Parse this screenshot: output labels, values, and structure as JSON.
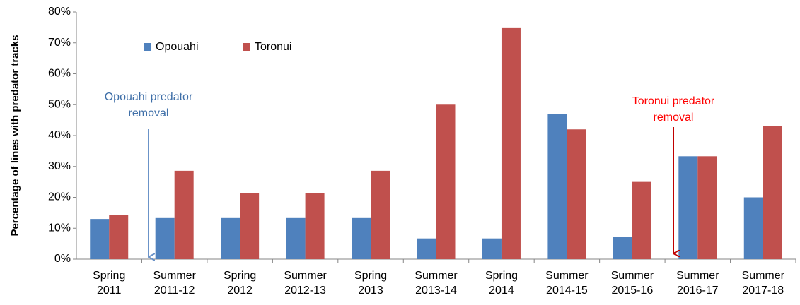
{
  "chart_data": {
    "type": "bar",
    "y_label": "Percentage of lines with predator tracks",
    "categories": [
      [
        "Spring",
        "2011"
      ],
      [
        "Summer",
        "2011-12"
      ],
      [
        "Spring",
        "2012"
      ],
      [
        "Summer",
        "2012-13"
      ],
      [
        "Spring",
        "2013"
      ],
      [
        "Summer",
        "2013-14"
      ],
      [
        "Spring",
        "2014"
      ],
      [
        "Summer",
        "2014-15"
      ],
      [
        "Summer",
        "2015-16"
      ],
      [
        "Summer",
        "2016-17"
      ],
      [
        "Summer",
        "2017-18"
      ]
    ],
    "series": [
      {
        "name": "Opouahi",
        "color": "#4f81bd",
        "values": [
          13,
          13.3,
          13.3,
          13.3,
          13.3,
          6.7,
          6.7,
          47,
          7.1,
          33.3,
          20
        ]
      },
      {
        "name": "Toronui",
        "color": "#c0504d",
        "values": [
          14.3,
          28.6,
          21.4,
          21.4,
          28.6,
          50,
          75,
          42,
          25,
          33.3,
          43
        ]
      }
    ],
    "ylim": [
      0,
      80
    ],
    "yticks": [
      {
        "value": 0,
        "label": "0%"
      },
      {
        "value": 10,
        "label": "10%"
      },
      {
        "value": 20,
        "label": "20%"
      },
      {
        "value": 30,
        "label": "30%"
      },
      {
        "value": 40,
        "label": "40%"
      },
      {
        "value": 50,
        "label": "50%"
      },
      {
        "value": 60,
        "label": "60%"
      },
      {
        "value": 70,
        "label": "70%"
      },
      {
        "value": 80,
        "label": "80%"
      }
    ],
    "annotations": [
      {
        "lines": [
          "Opouahi predator",
          "removal"
        ],
        "color": "#3f6fa8",
        "arrow_color": "#6b93c8"
      },
      {
        "lines": [
          "Toronui predator",
          "removal"
        ],
        "color": "#ff0000",
        "arrow_color": "#c00000"
      }
    ]
  }
}
